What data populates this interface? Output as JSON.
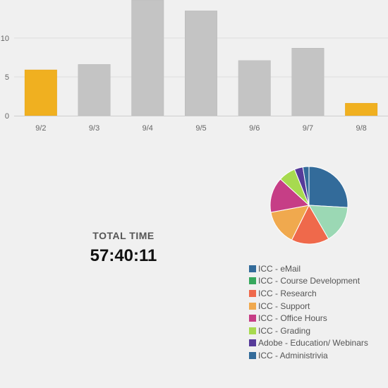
{
  "chart_data": [
    {
      "type": "bar",
      "categories": [
        "9/2",
        "9/3",
        "9/4",
        "9/5",
        "9/6",
        "9/7",
        "9/8"
      ],
      "values": [
        5.9,
        6.6,
        14.9,
        13.5,
        7.1,
        8.7,
        1.6
      ],
      "highlighted": [
        true,
        false,
        false,
        false,
        false,
        false,
        true
      ],
      "yticks": [
        0,
        5,
        10
      ],
      "ylim": [
        0,
        14.9
      ],
      "grid": true,
      "colors": {
        "highlight": "#f0b020",
        "normal": "#c4c4c4"
      }
    },
    {
      "type": "pie",
      "labels": [
        "ICC - eMail",
        "ICC - Course Development",
        "ICC - Research",
        "ICC - Support",
        "ICC - Office Hours",
        "ICC - Grading",
        "Adobe - Education/ Webinars",
        "ICC - Administrivia"
      ],
      "values": [
        25.5,
        15.5,
        15.5,
        14.5,
        14.5,
        7.0,
        3.5,
        2.5
      ],
      "colors": [
        "#336b9a",
        "#9bd8b4",
        "#ef694b",
        "#f0a94e",
        "#c63e86",
        "#a7da4f",
        "#563b99",
        "#336b9a"
      ]
    }
  ],
  "summary": {
    "total_label": "TOTAL TIME",
    "total_value": "57:40:11"
  },
  "legend": [
    {
      "label": "ICC - eMail",
      "color": "#336b9a"
    },
    {
      "label": "ICC - Course Development",
      "color": "#37a85d"
    },
    {
      "label": "ICC - Research",
      "color": "#ef694b"
    },
    {
      "label": "ICC - Support",
      "color": "#f0a94e"
    },
    {
      "label": "ICC - Office Hours",
      "color": "#c63e86"
    },
    {
      "label": "ICC - Grading",
      "color": "#a7da4f"
    },
    {
      "label": "Adobe - Education/ Webinars",
      "color": "#563b99"
    },
    {
      "label": "ICC - Administrivia",
      "color": "#336b9a"
    }
  ]
}
